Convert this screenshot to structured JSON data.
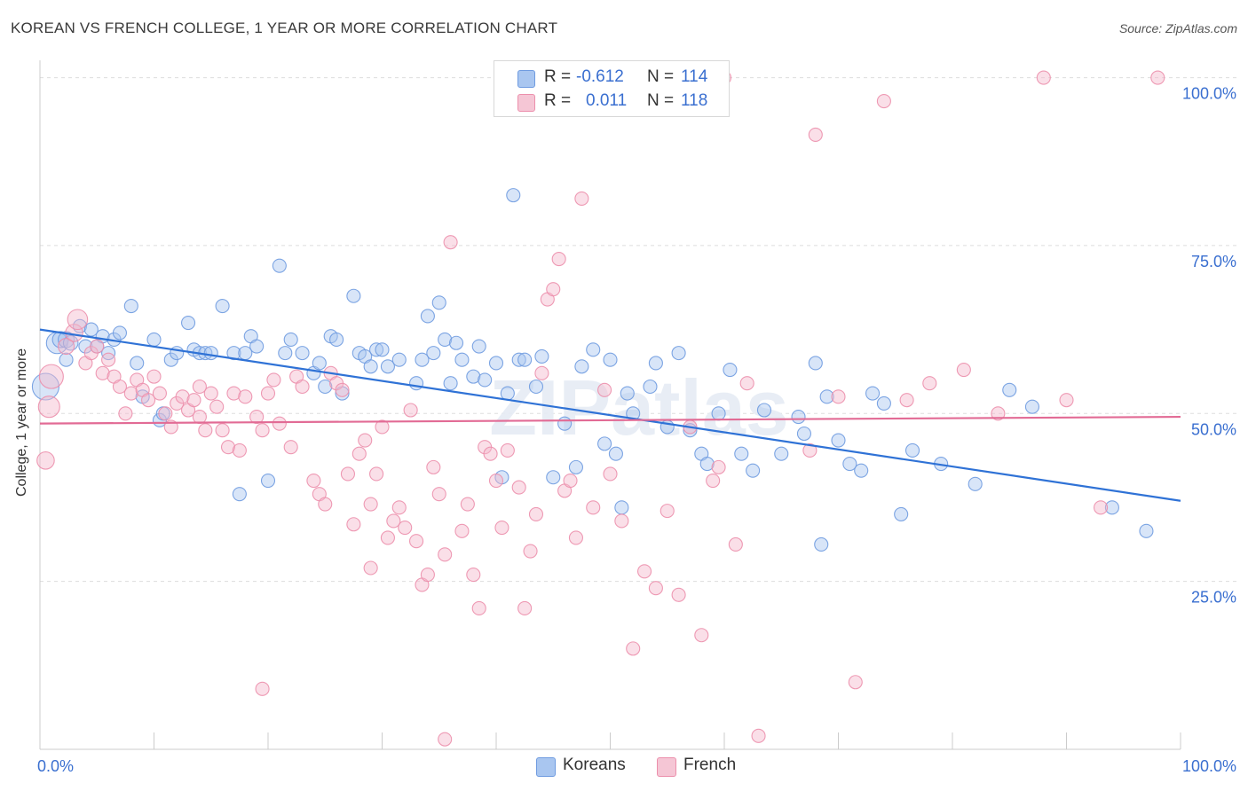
{
  "title": "KOREAN VS FRENCH COLLEGE, 1 YEAR OR MORE CORRELATION CHART",
  "source": "Source: ZipAtlas.com",
  "watermark": "ZIPatlas",
  "legend_top": [
    {
      "r_label": "R =",
      "r_value": "-0.612",
      "n_label": "N =",
      "n_value": "114"
    },
    {
      "r_label": "R =",
      "r_value": "0.011",
      "n_label": "N =",
      "n_value": "118"
    }
  ],
  "legend_bottom": [
    {
      "label": "Koreans"
    },
    {
      "label": "French"
    }
  ],
  "colors": {
    "korean_fill": "#a9c6f0",
    "korean_stroke": "#6f9be0",
    "korean_line": "#2f72d6",
    "french_fill": "#f5b8cb",
    "french_stroke": "#ec8fac",
    "french_line": "#e26b95",
    "tick_label": "#3a6fd0",
    "grid": "#dddddd"
  },
  "chart_data": {
    "type": "scatter",
    "title": "KOREAN VS FRENCH COLLEGE, 1 YEAR OR MORE CORRELATION CHART",
    "xlabel": "",
    "ylabel": "College, 1 year or more",
    "xlim": [
      0,
      100
    ],
    "ylim": [
      0,
      101
    ],
    "x_tick_labels": [
      "0.0%",
      "100.0%"
    ],
    "y_ticks": [
      25,
      50,
      75,
      100
    ],
    "y_tick_labels": [
      "25.0%",
      "50.0%",
      "75.0%",
      "100.0%"
    ],
    "series": [
      {
        "name": "Koreans",
        "r": -0.612,
        "n": 114,
        "trend": {
          "x": [
            0,
            100
          ],
          "y": [
            62.5,
            37.0
          ]
        },
        "points": [
          [
            1.5,
            60.5,
            1.6
          ],
          [
            0.5,
            54,
            2.0
          ],
          [
            1.8,
            61,
            1.2
          ],
          [
            2.3,
            61,
            1.2
          ],
          [
            2.3,
            58,
            1
          ],
          [
            2.7,
            60.5,
            1.1
          ],
          [
            3.5,
            63,
            1
          ],
          [
            4,
            60,
            1
          ],
          [
            4.5,
            62.5,
            1
          ],
          [
            5,
            60,
            1
          ],
          [
            5.5,
            61.5,
            1
          ],
          [
            6,
            59,
            1
          ],
          [
            6.5,
            61,
            1
          ],
          [
            7,
            62,
            1
          ],
          [
            8,
            66,
            1
          ],
          [
            8.5,
            57.5,
            1
          ],
          [
            9,
            52.5,
            1
          ],
          [
            10,
            61,
            1
          ],
          [
            10.5,
            49,
            1
          ],
          [
            10.8,
            50,
            1
          ],
          [
            11.5,
            58,
            1
          ],
          [
            12,
            59,
            1
          ],
          [
            13,
            63.5,
            1
          ],
          [
            13.5,
            59.5,
            1
          ],
          [
            14,
            59,
            1
          ],
          [
            14.5,
            59,
            1
          ],
          [
            15,
            59,
            1
          ],
          [
            16,
            66,
            1
          ],
          [
            17,
            59,
            1
          ],
          [
            17.5,
            38,
            1
          ],
          [
            18.5,
            61.5,
            1
          ],
          [
            19,
            60,
            1
          ],
          [
            20,
            40,
            1
          ],
          [
            21,
            72,
            1
          ],
          [
            21.5,
            59,
            1
          ],
          [
            22,
            61,
            1
          ],
          [
            23,
            59,
            1
          ],
          [
            24,
            56,
            1
          ],
          [
            24.5,
            57.5,
            1
          ],
          [
            25.5,
            61.5,
            1
          ],
          [
            26,
            61,
            1
          ],
          [
            26.5,
            53,
            1
          ],
          [
            27.5,
            67.5,
            1
          ],
          [
            28,
            59,
            1
          ],
          [
            28.5,
            58.5,
            1
          ],
          [
            29.5,
            59.5,
            1
          ],
          [
            30,
            59.5,
            1
          ],
          [
            30.5,
            57,
            1
          ],
          [
            31.5,
            58,
            1
          ],
          [
            33,
            54.5,
            1
          ],
          [
            34,
            64.5,
            1
          ],
          [
            34.5,
            59,
            1
          ],
          [
            35,
            66.5,
            1
          ],
          [
            35.5,
            61,
            1
          ],
          [
            36,
            54.5,
            1
          ],
          [
            37,
            58,
            1
          ],
          [
            38.5,
            60,
            1
          ],
          [
            38,
            55.5,
            1
          ],
          [
            39,
            55,
            1
          ],
          [
            40,
            57.5,
            1
          ],
          [
            41,
            53,
            1
          ],
          [
            41.5,
            82.5,
            1
          ],
          [
            42,
            58,
            1
          ],
          [
            42.5,
            58,
            1
          ],
          [
            43.5,
            54,
            1
          ],
          [
            44,
            58.5,
            1
          ],
          [
            46,
            48.5,
            1
          ],
          [
            47,
            42,
            1
          ],
          [
            47.5,
            57,
            1
          ],
          [
            48.5,
            59.5,
            1
          ],
          [
            49.5,
            45.5,
            1
          ],
          [
            50,
            58,
            1
          ],
          [
            50.5,
            44,
            1
          ],
          [
            51,
            36,
            1
          ],
          [
            51.5,
            53,
            1
          ],
          [
            52,
            50,
            1
          ],
          [
            53.5,
            54,
            1
          ],
          [
            55,
            48,
            1
          ],
          [
            56,
            59,
            1
          ],
          [
            57,
            47.5,
            1
          ],
          [
            58,
            44,
            1
          ],
          [
            58.5,
            42.5,
            1
          ],
          [
            59.5,
            50,
            1
          ],
          [
            60.5,
            56.5,
            1
          ],
          [
            61.5,
            44,
            1
          ],
          [
            62.5,
            41.5,
            1
          ],
          [
            63.5,
            50.5,
            1
          ],
          [
            65,
            44,
            1
          ],
          [
            66.5,
            49.5,
            1
          ],
          [
            67,
            47,
            1
          ],
          [
            68,
            57.5,
            1
          ],
          [
            68.5,
            30.5,
            1
          ],
          [
            69,
            52.5,
            1
          ],
          [
            70,
            46,
            1
          ],
          [
            71,
            42.5,
            1
          ],
          [
            72,
            41.5,
            1
          ],
          [
            73,
            53,
            1
          ],
          [
            74,
            51.5,
            1
          ],
          [
            75.5,
            35,
            1
          ],
          [
            76.5,
            44.5,
            1
          ],
          [
            79,
            42.5,
            1
          ],
          [
            82,
            39.5,
            1
          ],
          [
            85,
            53.5,
            1
          ],
          [
            87,
            51,
            1
          ],
          [
            94,
            36,
            1
          ],
          [
            97,
            32.5,
            1
          ],
          [
            54,
            57.5,
            1
          ],
          [
            36.5,
            60.5,
            1
          ],
          [
            33.5,
            58,
            1
          ],
          [
            45,
            40.5,
            1
          ],
          [
            40.5,
            40.5,
            1
          ],
          [
            29,
            57,
            1
          ],
          [
            25,
            54,
            1
          ],
          [
            18,
            59,
            1
          ]
        ]
      },
      {
        "name": "French",
        "r": 0.011,
        "n": 118,
        "trend": {
          "x": [
            0,
            100
          ],
          "y": [
            48.5,
            49.5
          ]
        },
        "points": [
          [
            1,
            55.5,
            1.8
          ],
          [
            0.8,
            51,
            1.6
          ],
          [
            0.5,
            43,
            1.3
          ],
          [
            2.3,
            60,
            1.2
          ],
          [
            3,
            62,
            1.3
          ],
          [
            3.3,
            64,
            1.5
          ],
          [
            4,
            57.5,
            1
          ],
          [
            4.5,
            59,
            1
          ],
          [
            5,
            60,
            1
          ],
          [
            5.5,
            56,
            1
          ],
          [
            6,
            58,
            1
          ],
          [
            6.5,
            55.5,
            1
          ],
          [
            7,
            54,
            1
          ],
          [
            7.5,
            50,
            1
          ],
          [
            8,
            53,
            1
          ],
          [
            8.5,
            55,
            1
          ],
          [
            9,
            53.5,
            1
          ],
          [
            9.5,
            52,
            1
          ],
          [
            10,
            55.5,
            1
          ],
          [
            10.5,
            53,
            1
          ],
          [
            11,
            50,
            1
          ],
          [
            11.5,
            48,
            1
          ],
          [
            12,
            51.5,
            1
          ],
          [
            12.5,
            52.5,
            1
          ],
          [
            13,
            50.5,
            1
          ],
          [
            13.5,
            52,
            1
          ],
          [
            14,
            49.5,
            1
          ],
          [
            14.5,
            47.5,
            1
          ],
          [
            15,
            53,
            1
          ],
          [
            15.5,
            51,
            1
          ],
          [
            16,
            47.5,
            1
          ],
          [
            16.5,
            45,
            1
          ],
          [
            17,
            53,
            1
          ],
          [
            17.5,
            44.5,
            1
          ],
          [
            18,
            52.5,
            1
          ],
          [
            19,
            49.5,
            1
          ],
          [
            19.5,
            47.5,
            1
          ],
          [
            20,
            53,
            1
          ],
          [
            20.5,
            55,
            1
          ],
          [
            21,
            48.5,
            1
          ],
          [
            22,
            45,
            1
          ],
          [
            22.5,
            55.5,
            1
          ],
          [
            23,
            54,
            1
          ],
          [
            24,
            40,
            1
          ],
          [
            24.5,
            38,
            1
          ],
          [
            25,
            36.5,
            1
          ],
          [
            25.5,
            56,
            1
          ],
          [
            26,
            54.5,
            1
          ],
          [
            26.5,
            53.5,
            1
          ],
          [
            27,
            41,
            1
          ],
          [
            27.5,
            33.5,
            1
          ],
          [
            28,
            44,
            1
          ],
          [
            28.5,
            46,
            1
          ],
          [
            29,
            36.5,
            1
          ],
          [
            29.5,
            41,
            1
          ],
          [
            30,
            48,
            1
          ],
          [
            30.5,
            31.5,
            1
          ],
          [
            31,
            34,
            1
          ],
          [
            31.5,
            36,
            1
          ],
          [
            32,
            33,
            1
          ],
          [
            32.5,
            50.5,
            1
          ],
          [
            33,
            31,
            1
          ],
          [
            33.5,
            24.5,
            1
          ],
          [
            34,
            26,
            1
          ],
          [
            34.5,
            42,
            1
          ],
          [
            35,
            38,
            1
          ],
          [
            35.5,
            29,
            1
          ],
          [
            36,
            75.5,
            1
          ],
          [
            37,
            32.5,
            1
          ],
          [
            37.5,
            36.5,
            1
          ],
          [
            38,
            26,
            1
          ],
          [
            38.5,
            21,
            1
          ],
          [
            39,
            45,
            1
          ],
          [
            39.5,
            44,
            1
          ],
          [
            40,
            40,
            1
          ],
          [
            40.5,
            33,
            1
          ],
          [
            41,
            44.5,
            1
          ],
          [
            42,
            39,
            1
          ],
          [
            42.5,
            21,
            1
          ],
          [
            43,
            29.5,
            1
          ],
          [
            43.5,
            35,
            1
          ],
          [
            44,
            56,
            1
          ],
          [
            44.5,
            67,
            1
          ],
          [
            45,
            68.5,
            1
          ],
          [
            45.5,
            73,
            1
          ],
          [
            46,
            38.5,
            1
          ],
          [
            46.5,
            40,
            1
          ],
          [
            47,
            31.5,
            1
          ],
          [
            47.5,
            82,
            1
          ],
          [
            48.5,
            36,
            1
          ],
          [
            49.5,
            53.5,
            1
          ],
          [
            50,
            41,
            1
          ],
          [
            51,
            34,
            1
          ],
          [
            52,
            15,
            1
          ],
          [
            53,
            26.5,
            1
          ],
          [
            54,
            24,
            1
          ],
          [
            55,
            35.5,
            1
          ],
          [
            56,
            23,
            1
          ],
          [
            57,
            48,
            1
          ],
          [
            58,
            17,
            1
          ],
          [
            59,
            40,
            1
          ],
          [
            59.5,
            42,
            1
          ],
          [
            60,
            100,
            1
          ],
          [
            61,
            30.5,
            1
          ],
          [
            62,
            54.5,
            1
          ],
          [
            63,
            2,
            1
          ],
          [
            67.5,
            44.5,
            1
          ],
          [
            68,
            91.5,
            1
          ],
          [
            70,
            52.5,
            1
          ],
          [
            71.5,
            10,
            1
          ],
          [
            74,
            96.5,
            1
          ],
          [
            76,
            52,
            1
          ],
          [
            78,
            54.5,
            1
          ],
          [
            81,
            56.5,
            1
          ],
          [
            84,
            50,
            1
          ],
          [
            88,
            100,
            1
          ],
          [
            93,
            36,
            1
          ],
          [
            98,
            100,
            1
          ],
          [
            90,
            52,
            1
          ],
          [
            19.5,
            9,
            1
          ],
          [
            14,
            54,
            1
          ],
          [
            29,
            27,
            1
          ],
          [
            35.5,
            1.5,
            1
          ]
        ]
      }
    ]
  }
}
